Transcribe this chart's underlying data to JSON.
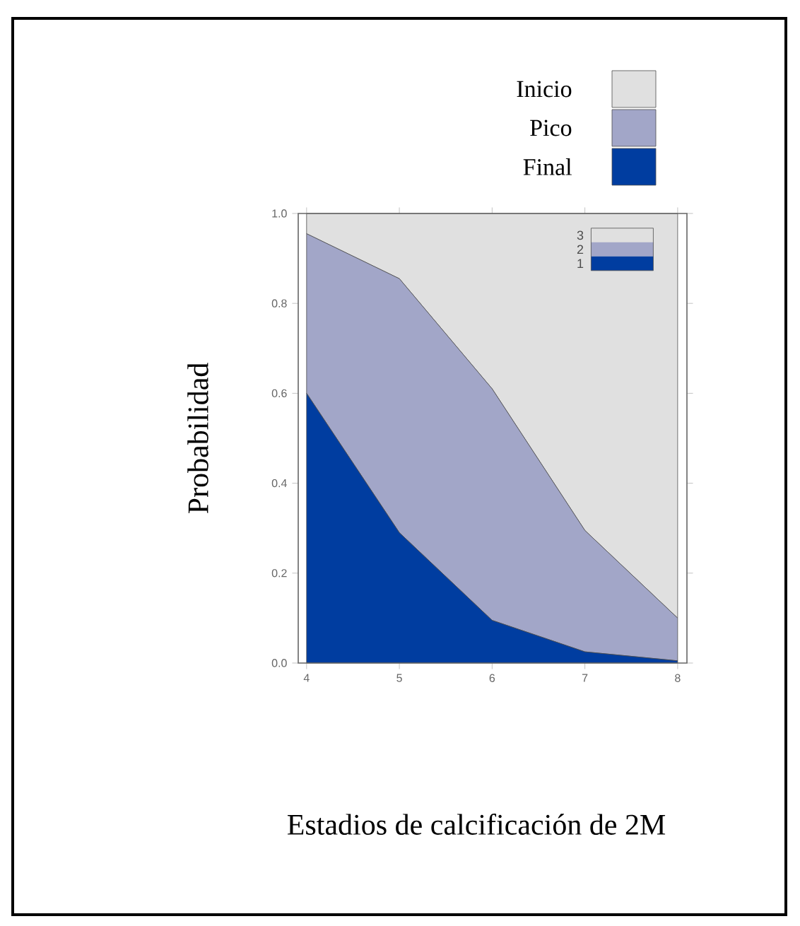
{
  "chart_data": {
    "type": "area",
    "stacked": true,
    "xlabel": "Estadios de calcificación de 2M",
    "ylabel": "Probabilidad",
    "x": [
      4,
      5,
      6,
      7,
      8
    ],
    "series": [
      {
        "name": "Final",
        "color": "#003da0",
        "values": [
          0.6,
          0.29,
          0.095,
          0.025,
          0.005
        ]
      },
      {
        "name": "Pico",
        "color": "#a2a6c8",
        "values": [
          0.355,
          0.565,
          0.515,
          0.27,
          0.095
        ]
      },
      {
        "name": "Inicio",
        "color": "#e0e0e0",
        "values": [
          0.045,
          0.145,
          0.39,
          0.705,
          0.9
        ]
      }
    ],
    "xlim": [
      3.91,
      8.1
    ],
    "ylim": [
      0,
      1
    ],
    "xticks": [
      4,
      5,
      6,
      7,
      8
    ],
    "yticks": [
      {
        "value": 0,
        "label": "0.0"
      },
      0.2,
      0.4,
      0.6,
      0.8,
      {
        "value": 1,
        "label": "1.0"
      }
    ],
    "legend": "top right",
    "grid": false,
    "annotations": [
      "3",
      "2",
      "1"
    ]
  }
}
